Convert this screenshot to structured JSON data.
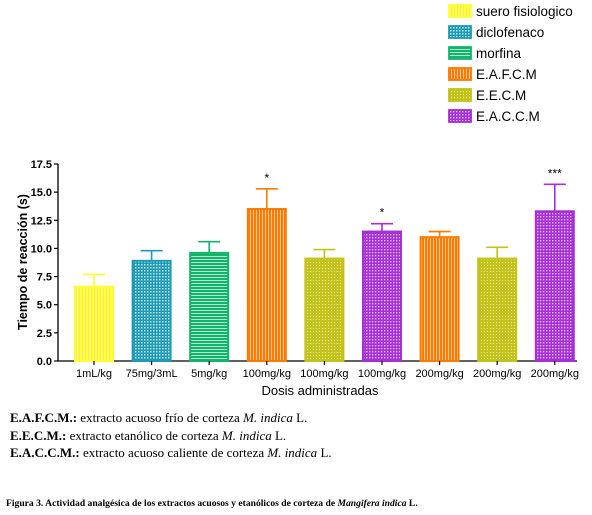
{
  "chart_data": {
    "type": "bar",
    "title": "",
    "ylabel": "Tiempo de reacción (s)",
    "xlabel": "Dosis administradas",
    "ylim": [
      0,
      17.5
    ],
    "yticks": [
      "0.0",
      "2.5",
      "5.0",
      "7.5",
      "10.0",
      "12.5",
      "15.0",
      "17.5"
    ],
    "categories": [
      "1mL/kg",
      "75mg/3mL",
      "5mg/kg",
      "100mg/kg",
      "100mg/kg",
      "100mg/kg",
      "200mg/kg",
      "200mg/kg",
      "200mg/kg"
    ],
    "values": [
      6.6,
      8.9,
      9.6,
      13.5,
      9.1,
      11.5,
      11.0,
      9.1,
      13.3
    ],
    "errors": [
      1.1,
      0.9,
      1.0,
      1.8,
      0.8,
      0.7,
      0.5,
      1.0,
      2.4
    ],
    "significance": [
      "",
      "",
      "",
      "*",
      "",
      "*",
      "",
      "",
      "***"
    ],
    "bar_series": [
      0,
      1,
      2,
      3,
      4,
      5,
      3,
      4,
      5
    ],
    "legend_position": "top-right",
    "series": [
      {
        "name": "suero fisiologico",
        "color": "#ffff33",
        "pattern": "vertical-fine"
      },
      {
        "name": "diclofenaco",
        "color": "#1f9ab5",
        "pattern": "grid"
      },
      {
        "name": "morfina",
        "color": "#12b36a",
        "pattern": "horizontal"
      },
      {
        "name": "E.A.F.C.M",
        "color": "#ff7a00",
        "pattern": "vertical"
      },
      {
        "name": "E.E.C.M",
        "color": "#c2c21a",
        "pattern": "fine-dots"
      },
      {
        "name": "E.A.C.C.M",
        "color": "#a62fd6",
        "pattern": "crosshatch"
      }
    ]
  },
  "notes": [
    {
      "abbr": "E.A.F.C.M.:",
      "text": " extracto acuoso  frío de corteza ",
      "species": "M. indica",
      "tail": " L."
    },
    {
      "abbr": "E.E.C.M.:",
      "text": " extracto etanólico de corteza ",
      "species": "M. indica",
      "tail": " L."
    },
    {
      "abbr": "E.A.C.C.M.:",
      "text": " extracto acuoso  caliente de corteza  ",
      "species": "M. indica",
      "tail": " L."
    }
  ],
  "caption": {
    "text": "Figura  3.  Actividad analgésica de los extractos acuosos y etanólicos de corteza de ",
    "species": "Mangifera indica",
    "tail": " L."
  }
}
